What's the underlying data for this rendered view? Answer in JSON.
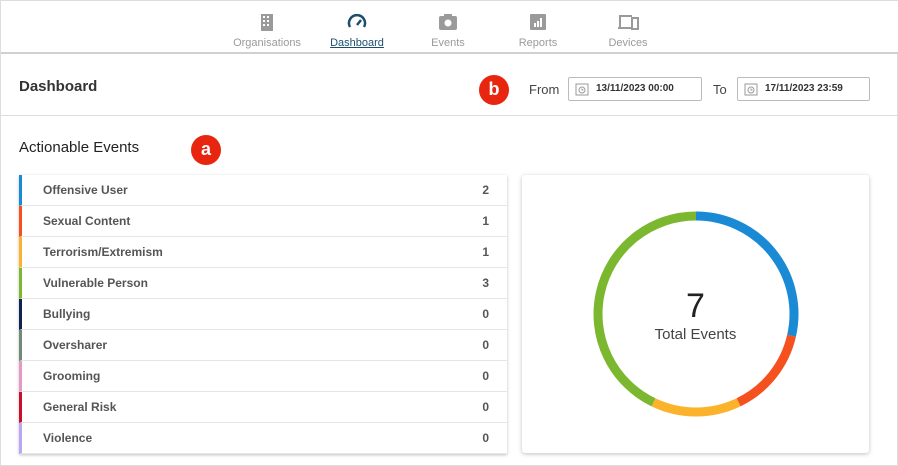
{
  "nav": {
    "items": [
      {
        "label": "Organisations",
        "icon": "building-icon",
        "active": false
      },
      {
        "label": "Dashboard",
        "icon": "speedometer-icon",
        "active": true
      },
      {
        "label": "Events",
        "icon": "camera-icon",
        "active": false
      },
      {
        "label": "Reports",
        "icon": "report-chart-icon",
        "active": false
      },
      {
        "label": "Devices",
        "icon": "devices-icon",
        "active": false
      }
    ]
  },
  "header": {
    "title": "Dashboard",
    "badge": "b",
    "from_label": "From",
    "from_value": "13/11/2023 00:00",
    "to_label": "To",
    "to_value": "17/11/2023 23:59"
  },
  "section": {
    "title": "Actionable Events",
    "badge": "a"
  },
  "events": [
    {
      "label": "Offensive User",
      "count": 2,
      "color": "#1a8ad4"
    },
    {
      "label": "Sexual Content",
      "count": 1,
      "color": "#f4511e"
    },
    {
      "label": "Terrorism/Extremism",
      "count": 1,
      "color": "#fbb32b"
    },
    {
      "label": "Vulnerable Person",
      "count": 3,
      "color": "#7cb82f"
    },
    {
      "label": "Bullying",
      "count": 0,
      "color": "#0e2350"
    },
    {
      "label": "Oversharer",
      "count": 0,
      "color": "#6e8a78"
    },
    {
      "label": "Grooming",
      "count": 0,
      "color": "#e59ac6"
    },
    {
      "label": "General Risk",
      "count": 0,
      "color": "#c8102e"
    },
    {
      "label": "Violence",
      "count": 0,
      "color": "#b9a7f5"
    }
  ],
  "donut": {
    "total": "7",
    "label": "Total Events"
  }
}
